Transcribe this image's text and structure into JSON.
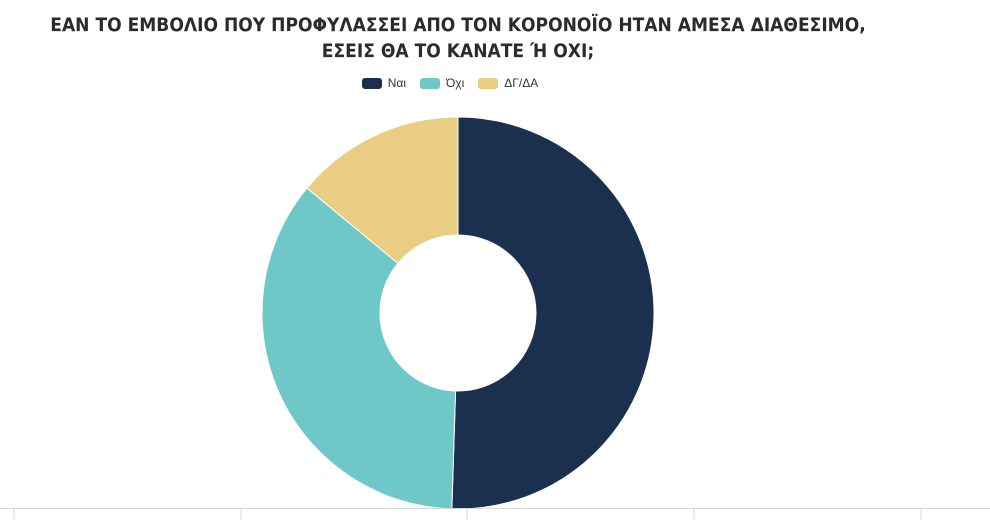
{
  "title": "ΕΑΝ ΤΟ ΕΜΒΟΛΙΟ ΠΟΥ ΠΡΟΦΥΛΑΣΣΕΙ ΑΠΟ ΤΟΝ ΚΟΡΟΝΟΪΟ ΗΤΑΝ ΑΜΕΣΑ ΔΙΑΘΕΣΙΜΟ, ΕΣΕΙΣ ΘΑ ΤΟ ΚΑΝΑΤΕ Ή ΟΧΙ;",
  "chart_data": {
    "type": "pie",
    "title": "ΕΑΝ ΤΟ ΕΜΒΟΛΙΟ ΠΟΥ ΠΡΟΦΥΛΑΣΣΕΙ ΑΠΟ ΤΟΝ ΚΟΡΟΝΟΪΟ ΗΤΑΝ ΑΜΕΣΑ ΔΙΑΘΕΣΙΜΟ, ΕΣΕΙΣ ΘΑ ΤΟ ΚΑΝΑΤΕ Ή ΟΧΙ;",
    "donut": true,
    "legend_position": "top",
    "categories": [
      "Ναι",
      "Όχι",
      "ΔΓ/ΔΑ"
    ],
    "values": [
      50.5,
      35.5,
      14.0
    ],
    "colors": [
      "#1b2f4f",
      "#6dc8c7",
      "#e9cd82"
    ]
  }
}
